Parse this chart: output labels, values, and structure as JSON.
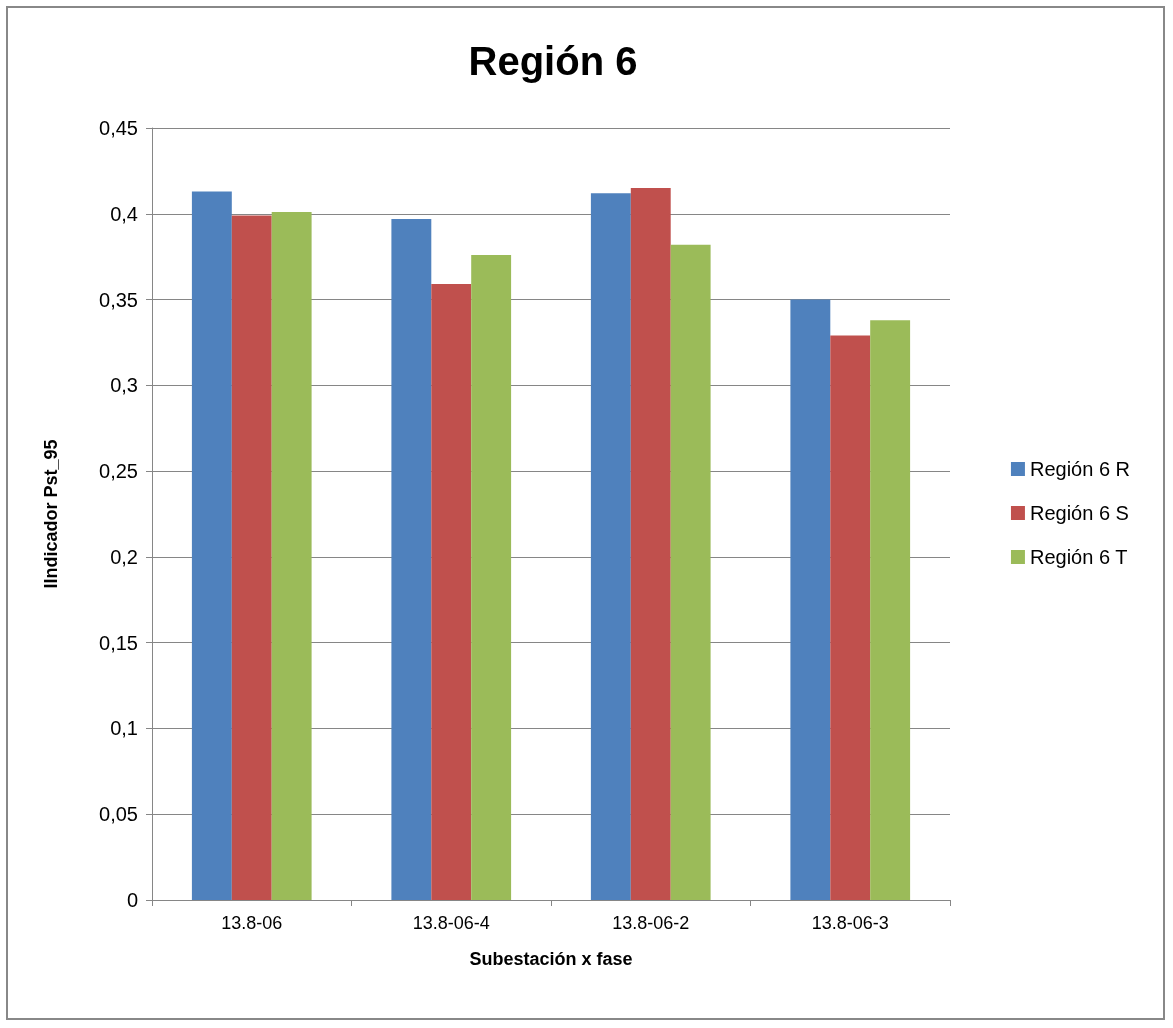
{
  "chart_data": {
    "type": "bar",
    "title": "Región 6",
    "xlabel": "Subestación x fase",
    "ylabel": "IIndicador Pst_95",
    "categories": [
      "13.8-06",
      "13.8-06-4",
      "13.8-06-2",
      "13.8-06-3"
    ],
    "series": [
      {
        "name": "Región 6 R",
        "color": "#4f81bd",
        "values": [
          0.413,
          0.397,
          0.412,
          0.35
        ]
      },
      {
        "name": "Región 6 S",
        "color": "#c0504d",
        "values": [
          0.399,
          0.359,
          0.415,
          0.329
        ]
      },
      {
        "name": "Región 6 T",
        "color": "#9bbb59",
        "values": [
          0.401,
          0.376,
          0.382,
          0.338
        ]
      }
    ],
    "ylim": [
      0,
      0.45
    ],
    "yticks": [
      0,
      {
        "value": 0.05,
        "label": "0,05"
      },
      {
        "value": 0.1,
        "label": "0,1"
      },
      {
        "value": 0.15,
        "label": "0,15"
      },
      {
        "value": 0.2,
        "label": "0,2"
      },
      {
        "value": 0.25,
        "label": "0,25"
      },
      {
        "value": 0.3,
        "label": "0,3"
      },
      {
        "value": 0.35,
        "label": "0,35"
      },
      {
        "value": 0.4,
        "label": "0,4"
      },
      {
        "value": 0.45,
        "label": "0,45"
      }
    ],
    "grid": "y",
    "legend": "right"
  }
}
